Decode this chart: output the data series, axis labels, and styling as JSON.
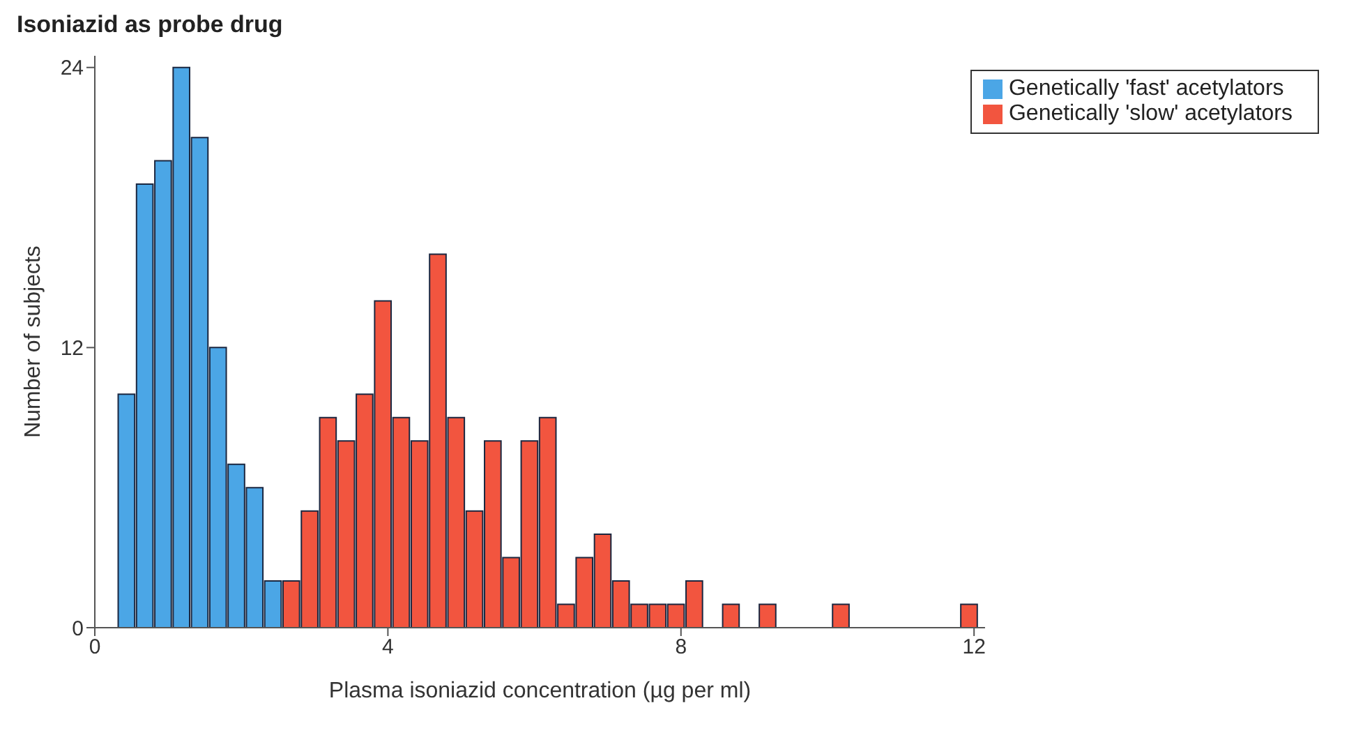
{
  "chart_data": {
    "type": "histogram",
    "title": "Isoniazid as probe drug",
    "xlabel": "Plasma isoniazid concentration (µg per ml)",
    "ylabel": "Number of subjects",
    "bins": [
      0.3,
      0.55,
      0.8,
      1.05,
      1.3,
      1.55,
      1.8,
      2.05,
      2.3,
      2.55,
      2.8,
      3.05,
      3.3,
      3.55,
      3.8,
      4.05,
      4.3,
      4.55,
      4.8,
      5.05,
      5.3,
      5.55,
      5.8,
      6.05,
      6.3,
      6.55,
      6.8,
      7.05,
      7.3,
      7.55,
      7.8,
      8.05,
      8.3,
      8.55,
      8.8,
      9.05,
      9.3,
      9.55,
      9.8,
      10.05,
      10.3,
      10.55,
      10.8,
      11.05,
      11.3,
      11.55,
      11.8,
      12.05
    ],
    "series": [
      {
        "name": "Genetically 'fast' acetylators",
        "color": "#4ba6e6",
        "values": [
          10,
          19,
          20,
          24,
          21,
          12,
          7,
          6,
          2,
          null,
          null,
          null,
          null,
          null,
          null,
          null,
          null,
          null,
          null,
          null,
          null,
          null,
          null,
          null,
          null,
          null,
          null,
          null,
          null,
          null,
          null,
          null,
          null,
          null,
          null,
          null,
          null,
          null,
          null,
          null,
          null,
          null,
          null,
          null,
          null,
          null,
          null
        ]
      },
      {
        "name": "Genetically 'slow' acetylators",
        "color": "#f2553f",
        "values": [
          null,
          null,
          null,
          null,
          null,
          null,
          null,
          null,
          null,
          2,
          5,
          9,
          8,
          10,
          14,
          9,
          8,
          16,
          9,
          5,
          8,
          3,
          8,
          9,
          1,
          3,
          4,
          2,
          1,
          1,
          1,
          2,
          0,
          1,
          0,
          1,
          0,
          0,
          0,
          1,
          0,
          0,
          0,
          0,
          0,
          0,
          1
        ]
      }
    ],
    "xlim": [
      0,
      12.15
    ],
    "xticks": [
      0,
      4,
      8,
      12
    ],
    "ylim": [
      0,
      24.5
    ],
    "yticks": [
      0,
      12,
      24
    ],
    "legend": "top right",
    "grid": false
  }
}
